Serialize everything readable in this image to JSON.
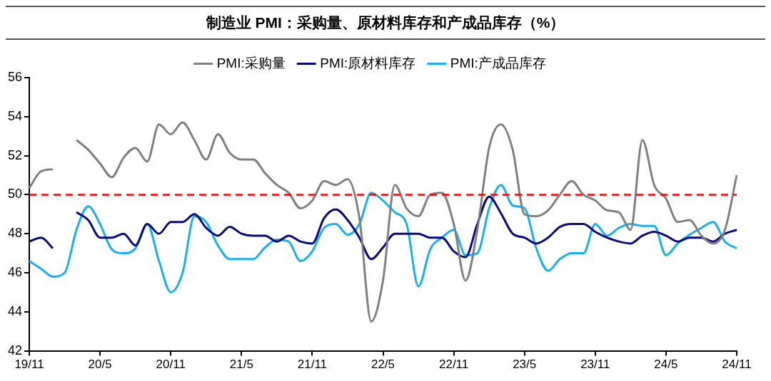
{
  "chart_data": {
    "type": "line",
    "title": "制造业 PMI：采购量、原材料库存和产成品库存（%）",
    "categories": [
      "19/11",
      null,
      null,
      null,
      null,
      null,
      "20/5",
      null,
      null,
      null,
      null,
      null,
      "20/11",
      null,
      null,
      null,
      null,
      null,
      "21/5",
      null,
      null,
      null,
      null,
      null,
      "21/11",
      null,
      null,
      null,
      null,
      null,
      "22/5",
      null,
      null,
      null,
      null,
      null,
      "22/11",
      null,
      null,
      null,
      null,
      null,
      "23/5",
      null,
      null,
      null,
      null,
      null,
      "23/11",
      null,
      null,
      null,
      null,
      null,
      "24/5",
      null,
      null,
      null,
      null,
      null,
      "24/11"
    ],
    "series": [
      {
        "name": "PMI:采购量",
        "color": "#808080",
        "values": [
          50.35,
          51.2,
          51.3,
          null,
          52.8,
          52.3,
          51.6,
          50.9,
          51.9,
          52.4,
          51.7,
          53.6,
          53.1,
          53.7,
          52.8,
          51.8,
          53.1,
          52.15,
          51.8,
          51.8,
          51.1,
          50.5,
          50.1,
          49.3,
          49.7,
          50.7,
          50.5,
          50.8,
          48.8,
          43.5,
          45.6,
          50.5,
          49.3,
          48.9,
          50.0,
          50.1,
          48.5,
          45.6,
          48.2,
          52.4,
          53.6,
          52.3,
          49.0,
          48.9,
          49.2,
          50.0,
          50.7,
          50.0,
          49.7,
          49.2,
          49.1,
          48.2,
          52.8,
          50.5,
          49.8,
          48.6,
          48.7,
          47.9,
          47.5,
          48.2,
          51.0
        ]
      },
      {
        "name": "PMI:原材料库存",
        "color": "#0a0a80",
        "values": [
          47.6,
          47.8,
          47.25,
          null,
          49.1,
          48.7,
          47.8,
          47.8,
          48.0,
          47.4,
          48.5,
          48.0,
          48.6,
          48.6,
          49.0,
          48.3,
          47.9,
          48.35,
          48.0,
          47.9,
          47.9,
          47.6,
          47.9,
          47.6,
          47.5,
          48.8,
          49.25,
          48.7,
          47.8,
          46.7,
          47.3,
          48.0,
          48.0,
          48.0,
          47.8,
          47.8,
          47.1,
          46.8,
          48.5,
          49.9,
          49.05,
          48.0,
          47.8,
          47.5,
          47.8,
          48.35,
          48.5,
          48.5,
          48.1,
          47.8,
          47.6,
          47.5,
          47.9,
          48.1,
          47.9,
          47.6,
          47.8,
          47.8,
          47.6,
          48.0,
          48.2
        ]
      },
      {
        "name": "PMI:产成品库存",
        "color": "#1ab0f0",
        "values": [
          46.6,
          46.2,
          45.8,
          46.0,
          48.2,
          49.4,
          48.5,
          47.2,
          47.0,
          47.25,
          48.5,
          46.6,
          45.0,
          46.0,
          48.9,
          48.6,
          47.4,
          46.7,
          46.7,
          46.7,
          47.3,
          47.7,
          47.6,
          46.6,
          47.1,
          48.3,
          48.5,
          47.95,
          48.5,
          50.1,
          49.7,
          49.1,
          48.5,
          45.3,
          47.2,
          47.8,
          48.2,
          46.9,
          47.0,
          49.3,
          50.5,
          49.45,
          49.3,
          47.25,
          46.1,
          46.7,
          47.0,
          47.0,
          48.5,
          47.9,
          48.3,
          48.5,
          48.4,
          48.4,
          46.9,
          47.5,
          47.95,
          48.3,
          48.6,
          47.6,
          47.25
        ]
      }
    ],
    "ylim": [
      42,
      56
    ],
    "yticks": [
      42,
      44,
      46,
      48,
      50,
      52,
      54,
      56
    ],
    "ref_lines": [
      {
        "axis": "y",
        "value": 50,
        "color": "#ff0000",
        "line_style": "dashed"
      }
    ],
    "legend": "top",
    "grid": false,
    "marker": "none",
    "line_style": "solid"
  }
}
